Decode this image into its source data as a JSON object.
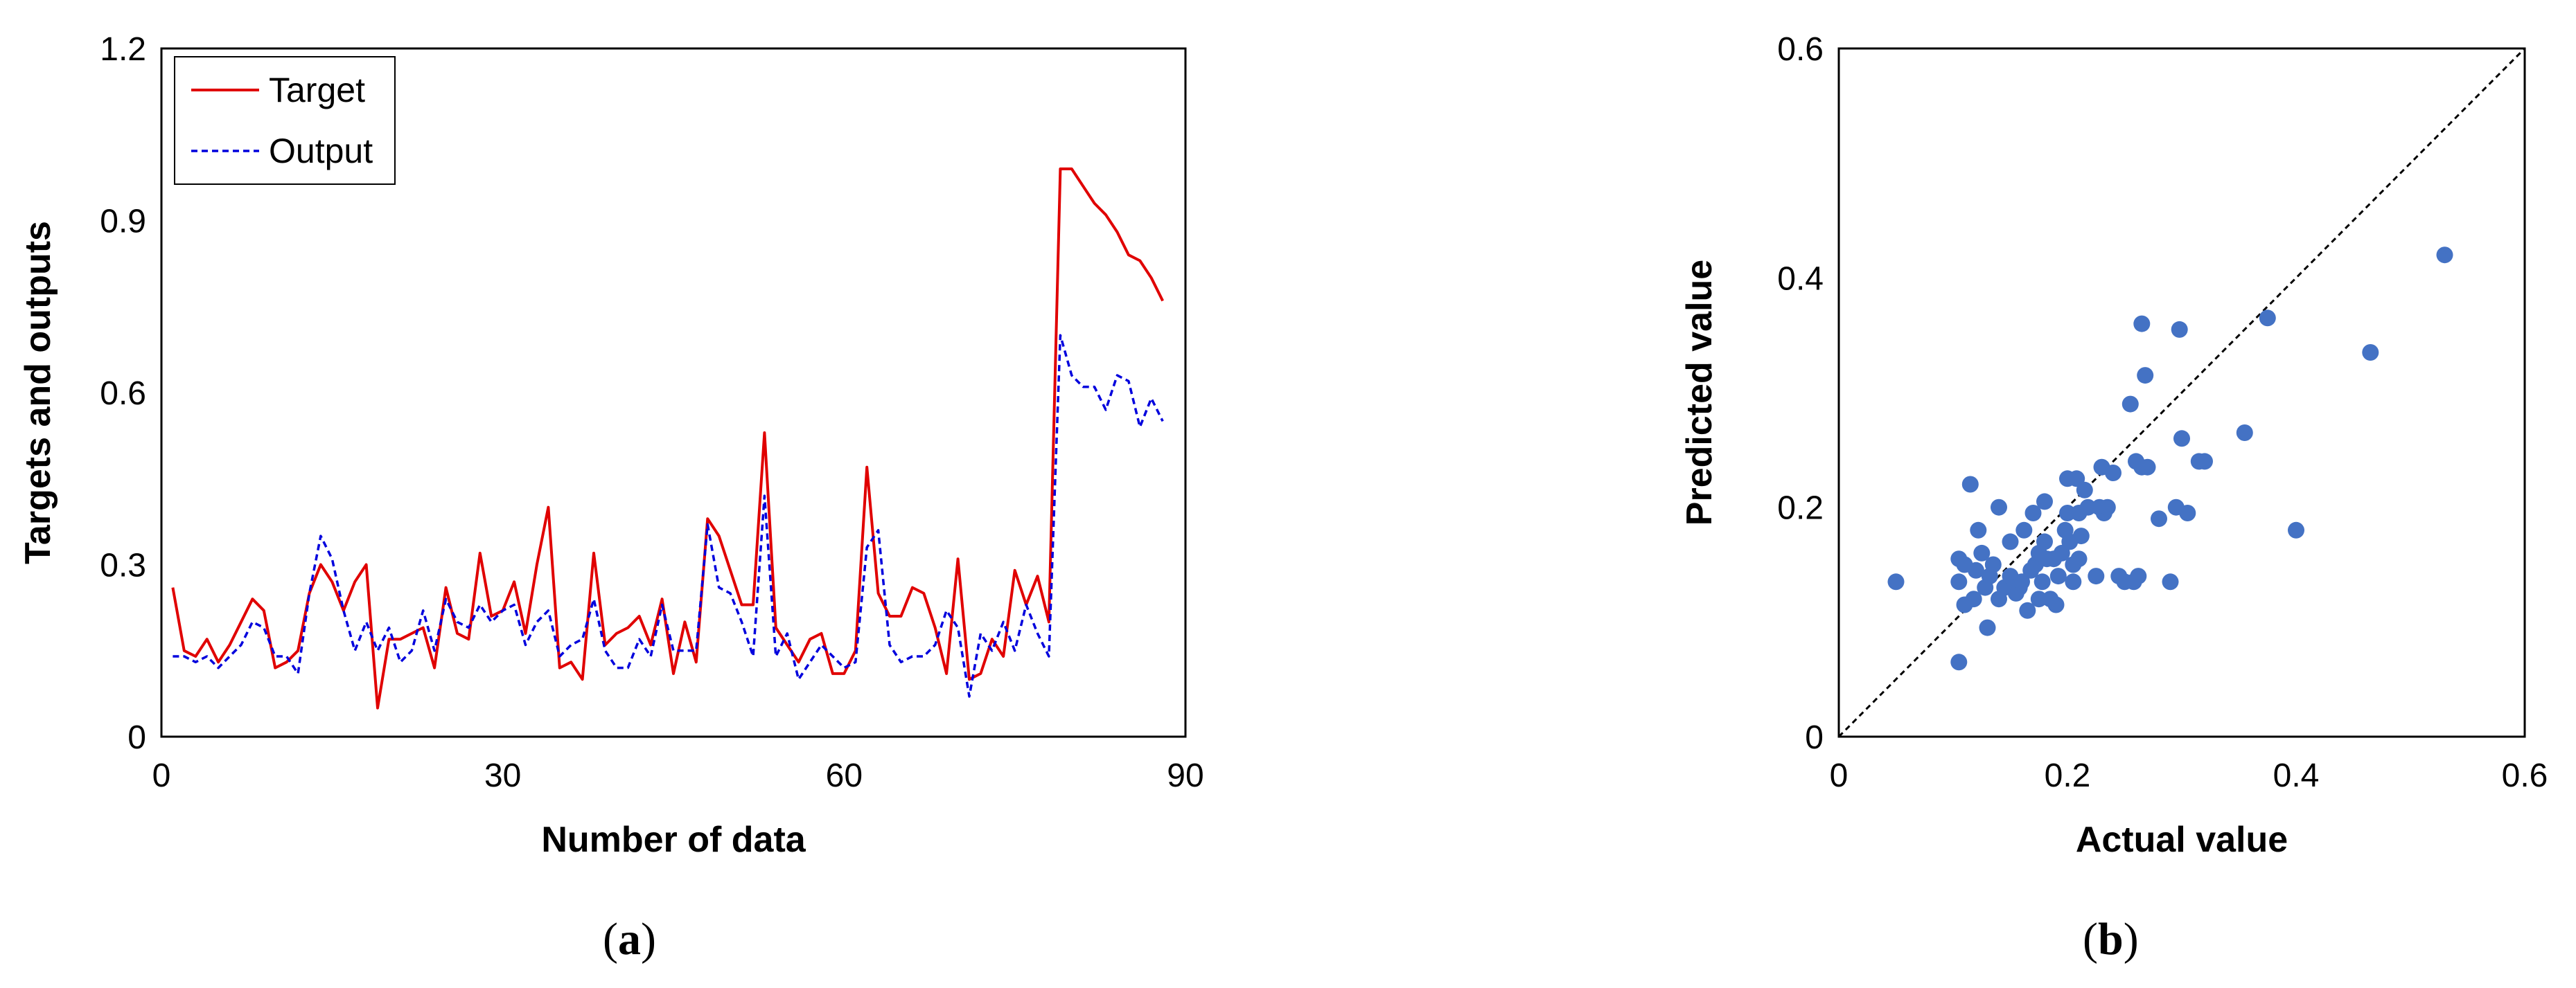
{
  "chart_data": [
    {
      "type": "line",
      "xlabel": "Number of data",
      "ylabel": "Targets and outputs",
      "xlim": [
        0,
        90
      ],
      "ylim": [
        0,
        1.2
      ],
      "xticks": [
        "0",
        "30",
        "60",
        "90"
      ],
      "yticks": [
        "0",
        "0.3",
        "0.6",
        "0.9",
        "1.2"
      ],
      "legend_position": "top-left",
      "caption": {
        "open": "(",
        "letter": "a",
        "close": ")"
      },
      "colors": {
        "target": "#e00000",
        "output": "#0000dd"
      },
      "x": [
        1,
        2,
        3,
        4,
        5,
        6,
        7,
        8,
        9,
        10,
        11,
        12,
        13,
        14,
        15,
        16,
        17,
        18,
        19,
        20,
        21,
        22,
        23,
        24,
        25,
        26,
        27,
        28,
        29,
        30,
        31,
        32,
        33,
        34,
        35,
        36,
        37,
        38,
        39,
        40,
        41,
        42,
        43,
        44,
        45,
        46,
        47,
        48,
        49,
        50,
        51,
        52,
        53,
        54,
        55,
        56,
        57,
        58,
        59,
        60,
        61,
        62,
        63,
        64,
        65,
        66,
        67,
        68,
        69,
        70,
        71,
        72,
        73,
        74,
        75,
        76,
        77,
        78,
        79,
        80,
        81,
        82,
        83,
        84,
        85,
        86,
        87,
        88
      ],
      "series": [
        {
          "name": "Target",
          "style": "solid",
          "values": [
            0.26,
            0.15,
            0.14,
            0.17,
            0.13,
            0.16,
            0.2,
            0.24,
            0.22,
            0.12,
            0.13,
            0.15,
            0.25,
            0.3,
            0.27,
            0.22,
            0.27,
            0.3,
            0.05,
            0.17,
            0.17,
            0.18,
            0.19,
            0.12,
            0.26,
            0.18,
            0.17,
            0.32,
            0.21,
            0.22,
            0.27,
            0.18,
            0.3,
            0.4,
            0.12,
            0.13,
            0.1,
            0.32,
            0.16,
            0.18,
            0.19,
            0.21,
            0.16,
            0.24,
            0.11,
            0.2,
            0.13,
            0.38,
            0.35,
            0.29,
            0.23,
            0.23,
            0.53,
            0.19,
            0.16,
            0.13,
            0.17,
            0.18,
            0.11,
            0.11,
            0.15,
            0.47,
            0.25,
            0.21,
            0.21,
            0.26,
            0.25,
            0.19,
            0.11,
            0.31,
            0.1,
            0.11,
            0.17,
            0.14,
            0.29,
            0.23,
            0.28,
            0.2,
            0.99,
            0.99,
            0.96,
            0.93,
            0.91,
            0.88,
            0.84,
            0.83,
            0.8,
            0.76
          ]
        },
        {
          "name": "Output",
          "style": "dashed",
          "values": [
            0.14,
            0.14,
            0.13,
            0.14,
            0.12,
            0.14,
            0.16,
            0.2,
            0.19,
            0.14,
            0.14,
            0.11,
            0.25,
            0.35,
            0.31,
            0.22,
            0.15,
            0.2,
            0.15,
            0.19,
            0.13,
            0.15,
            0.22,
            0.15,
            0.24,
            0.2,
            0.19,
            0.23,
            0.2,
            0.22,
            0.23,
            0.16,
            0.2,
            0.22,
            0.14,
            0.16,
            0.17,
            0.24,
            0.15,
            0.12,
            0.12,
            0.17,
            0.14,
            0.23,
            0.15,
            0.15,
            0.15,
            0.37,
            0.26,
            0.25,
            0.2,
            0.14,
            0.42,
            0.14,
            0.18,
            0.1,
            0.13,
            0.16,
            0.14,
            0.12,
            0.13,
            0.33,
            0.36,
            0.16,
            0.13,
            0.14,
            0.14,
            0.16,
            0.22,
            0.19,
            0.07,
            0.18,
            0.15,
            0.2,
            0.15,
            0.23,
            0.18,
            0.14,
            0.7,
            0.63,
            0.61,
            0.61,
            0.57,
            0.63,
            0.62,
            0.54,
            0.59,
            0.55
          ]
        }
      ]
    },
    {
      "type": "scatter",
      "xlabel": "Actual value",
      "ylabel": "Predicted value",
      "xlim": [
        0,
        0.6
      ],
      "ylim": [
        0,
        0.6
      ],
      "xticks": [
        "0",
        "0.2",
        "0.4",
        "0.6"
      ],
      "yticks": [
        "0",
        "0.2",
        "0.4",
        "0.6"
      ],
      "reference_line": "y = x (dashed)",
      "caption": {
        "open": "(",
        "letter": "b",
        "close": ")"
      },
      "colors": {
        "points": "#4472c4",
        "reference": "#000000"
      },
      "points": [
        [
          0.05,
          0.135
        ],
        [
          0.105,
          0.155
        ],
        [
          0.105,
          0.135
        ],
        [
          0.105,
          0.065
        ],
        [
          0.11,
          0.115
        ],
        [
          0.11,
          0.15
        ],
        [
          0.115,
          0.22
        ],
        [
          0.118,
          0.12
        ],
        [
          0.12,
          0.145
        ],
        [
          0.122,
          0.18
        ],
        [
          0.125,
          0.16
        ],
        [
          0.128,
          0.13
        ],
        [
          0.13,
          0.095
        ],
        [
          0.132,
          0.14
        ],
        [
          0.135,
          0.15
        ],
        [
          0.14,
          0.12
        ],
        [
          0.14,
          0.2
        ],
        [
          0.145,
          0.13
        ],
        [
          0.15,
          0.14
        ],
        [
          0.15,
          0.17
        ],
        [
          0.155,
          0.125
        ],
        [
          0.158,
          0.13
        ],
        [
          0.16,
          0.135
        ],
        [
          0.162,
          0.18
        ],
        [
          0.165,
          0.11
        ],
        [
          0.168,
          0.145
        ],
        [
          0.17,
          0.195
        ],
        [
          0.172,
          0.15
        ],
        [
          0.175,
          0.12
        ],
        [
          0.175,
          0.16
        ],
        [
          0.178,
          0.135
        ],
        [
          0.18,
          0.205
        ],
        [
          0.18,
          0.17
        ],
        [
          0.182,
          0.155
        ],
        [
          0.185,
          0.12
        ],
        [
          0.188,
          0.155
        ],
        [
          0.19,
          0.115
        ],
        [
          0.192,
          0.14
        ],
        [
          0.195,
          0.16
        ],
        [
          0.198,
          0.18
        ],
        [
          0.2,
          0.225
        ],
        [
          0.2,
          0.195
        ],
        [
          0.202,
          0.17
        ],
        [
          0.205,
          0.135
        ],
        [
          0.205,
          0.15
        ],
        [
          0.208,
          0.225
        ],
        [
          0.21,
          0.195
        ],
        [
          0.21,
          0.155
        ],
        [
          0.212,
          0.175
        ],
        [
          0.215,
          0.215
        ],
        [
          0.218,
          0.2
        ],
        [
          0.225,
          0.14
        ],
        [
          0.228,
          0.2
        ],
        [
          0.23,
          0.235
        ],
        [
          0.232,
          0.195
        ],
        [
          0.235,
          0.2
        ],
        [
          0.24,
          0.23
        ],
        [
          0.245,
          0.14
        ],
        [
          0.25,
          0.135
        ],
        [
          0.255,
          0.29
        ],
        [
          0.258,
          0.135
        ],
        [
          0.26,
          0.24
        ],
        [
          0.262,
          0.14
        ],
        [
          0.265,
          0.235
        ],
        [
          0.265,
          0.36
        ],
        [
          0.268,
          0.315
        ],
        [
          0.27,
          0.235
        ],
        [
          0.28,
          0.19
        ],
        [
          0.29,
          0.135
        ],
        [
          0.295,
          0.2
        ],
        [
          0.298,
          0.355
        ],
        [
          0.3,
          0.26
        ],
        [
          0.305,
          0.195
        ],
        [
          0.315,
          0.24
        ],
        [
          0.32,
          0.24
        ],
        [
          0.355,
          0.265
        ],
        [
          0.375,
          0.365
        ],
        [
          0.4,
          0.18
        ],
        [
          0.465,
          0.335
        ],
        [
          0.53,
          0.42
        ]
      ]
    }
  ],
  "legend": {
    "target_label": "Target",
    "output_label": "Output"
  }
}
